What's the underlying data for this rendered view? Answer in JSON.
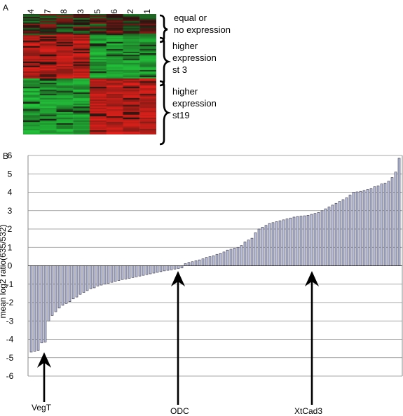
{
  "panel_a": {
    "letter": "A",
    "columns": [
      "Xt4",
      "Xt7",
      "Xt8",
      "Xt3",
      "Xt5",
      "Xt6",
      "Xt2",
      "Xt1"
    ],
    "groups": [
      {
        "label_lines": [
          "equal or",
          "no expression"
        ]
      },
      {
        "label_lines": [
          "higher",
          "expression",
          "st 3"
        ]
      },
      {
        "label_lines": [
          "higher",
          "expression",
          "st19"
        ]
      }
    ],
    "colors": {
      "red": "#e0201a",
      "green": "#22c23a",
      "dark": "#1a1410"
    }
  },
  "panel_b": {
    "letter": "B",
    "arrows": [
      {
        "label": "VegT"
      },
      {
        "label": "ODC"
      },
      {
        "label": "XtCad3"
      }
    ]
  },
  "chart_data": {
    "type": "bar",
    "title": "",
    "xlabel": "",
    "ylabel": "mean log2 ratio(635/532)",
    "ylim": [
      -6,
      6
    ],
    "yticks": [
      6,
      5,
      4,
      3,
      2,
      1,
      0,
      -1,
      -2,
      -3,
      -4,
      -5,
      -6
    ],
    "grid": true,
    "bar_color": "#b9bfdc",
    "values": [
      -4.7,
      -4.65,
      -4.6,
      -4.2,
      -4.15,
      -3,
      -2.7,
      -2.5,
      -2.3,
      -2.15,
      -2.05,
      -1.95,
      -1.8,
      -1.7,
      -1.55,
      -1.45,
      -1.35,
      -1.25,
      -1.2,
      -1.1,
      -1.05,
      -1.0,
      -0.95,
      -0.9,
      -0.85,
      -0.8,
      -0.75,
      -0.72,
      -0.68,
      -0.64,
      -0.6,
      -0.56,
      -0.52,
      -0.48,
      -0.44,
      -0.4,
      -0.36,
      -0.32,
      -0.28,
      -0.25,
      -0.22,
      -0.18,
      -0.15,
      -0.12,
      0.12,
      0.18,
      0.22,
      0.28,
      0.32,
      0.38,
      0.45,
      0.5,
      0.55,
      0.62,
      0.68,
      0.75,
      0.85,
      0.9,
      0.95,
      1.0,
      1.1,
      1.3,
      1.4,
      1.5,
      1.8,
      2.0,
      2.1,
      2.2,
      2.3,
      2.35,
      2.4,
      2.45,
      2.5,
      2.55,
      2.6,
      2.65,
      2.68,
      2.7,
      2.72,
      2.75,
      2.8,
      2.85,
      2.9,
      3.0,
      3.1,
      3.2,
      3.3,
      3.4,
      3.5,
      3.6,
      3.7,
      3.85,
      4.0,
      4.02,
      4.05,
      4.1,
      4.15,
      4.2,
      4.3,
      4.35,
      4.45,
      4.5,
      4.6,
      4.8,
      5.1,
      5.85
    ]
  }
}
